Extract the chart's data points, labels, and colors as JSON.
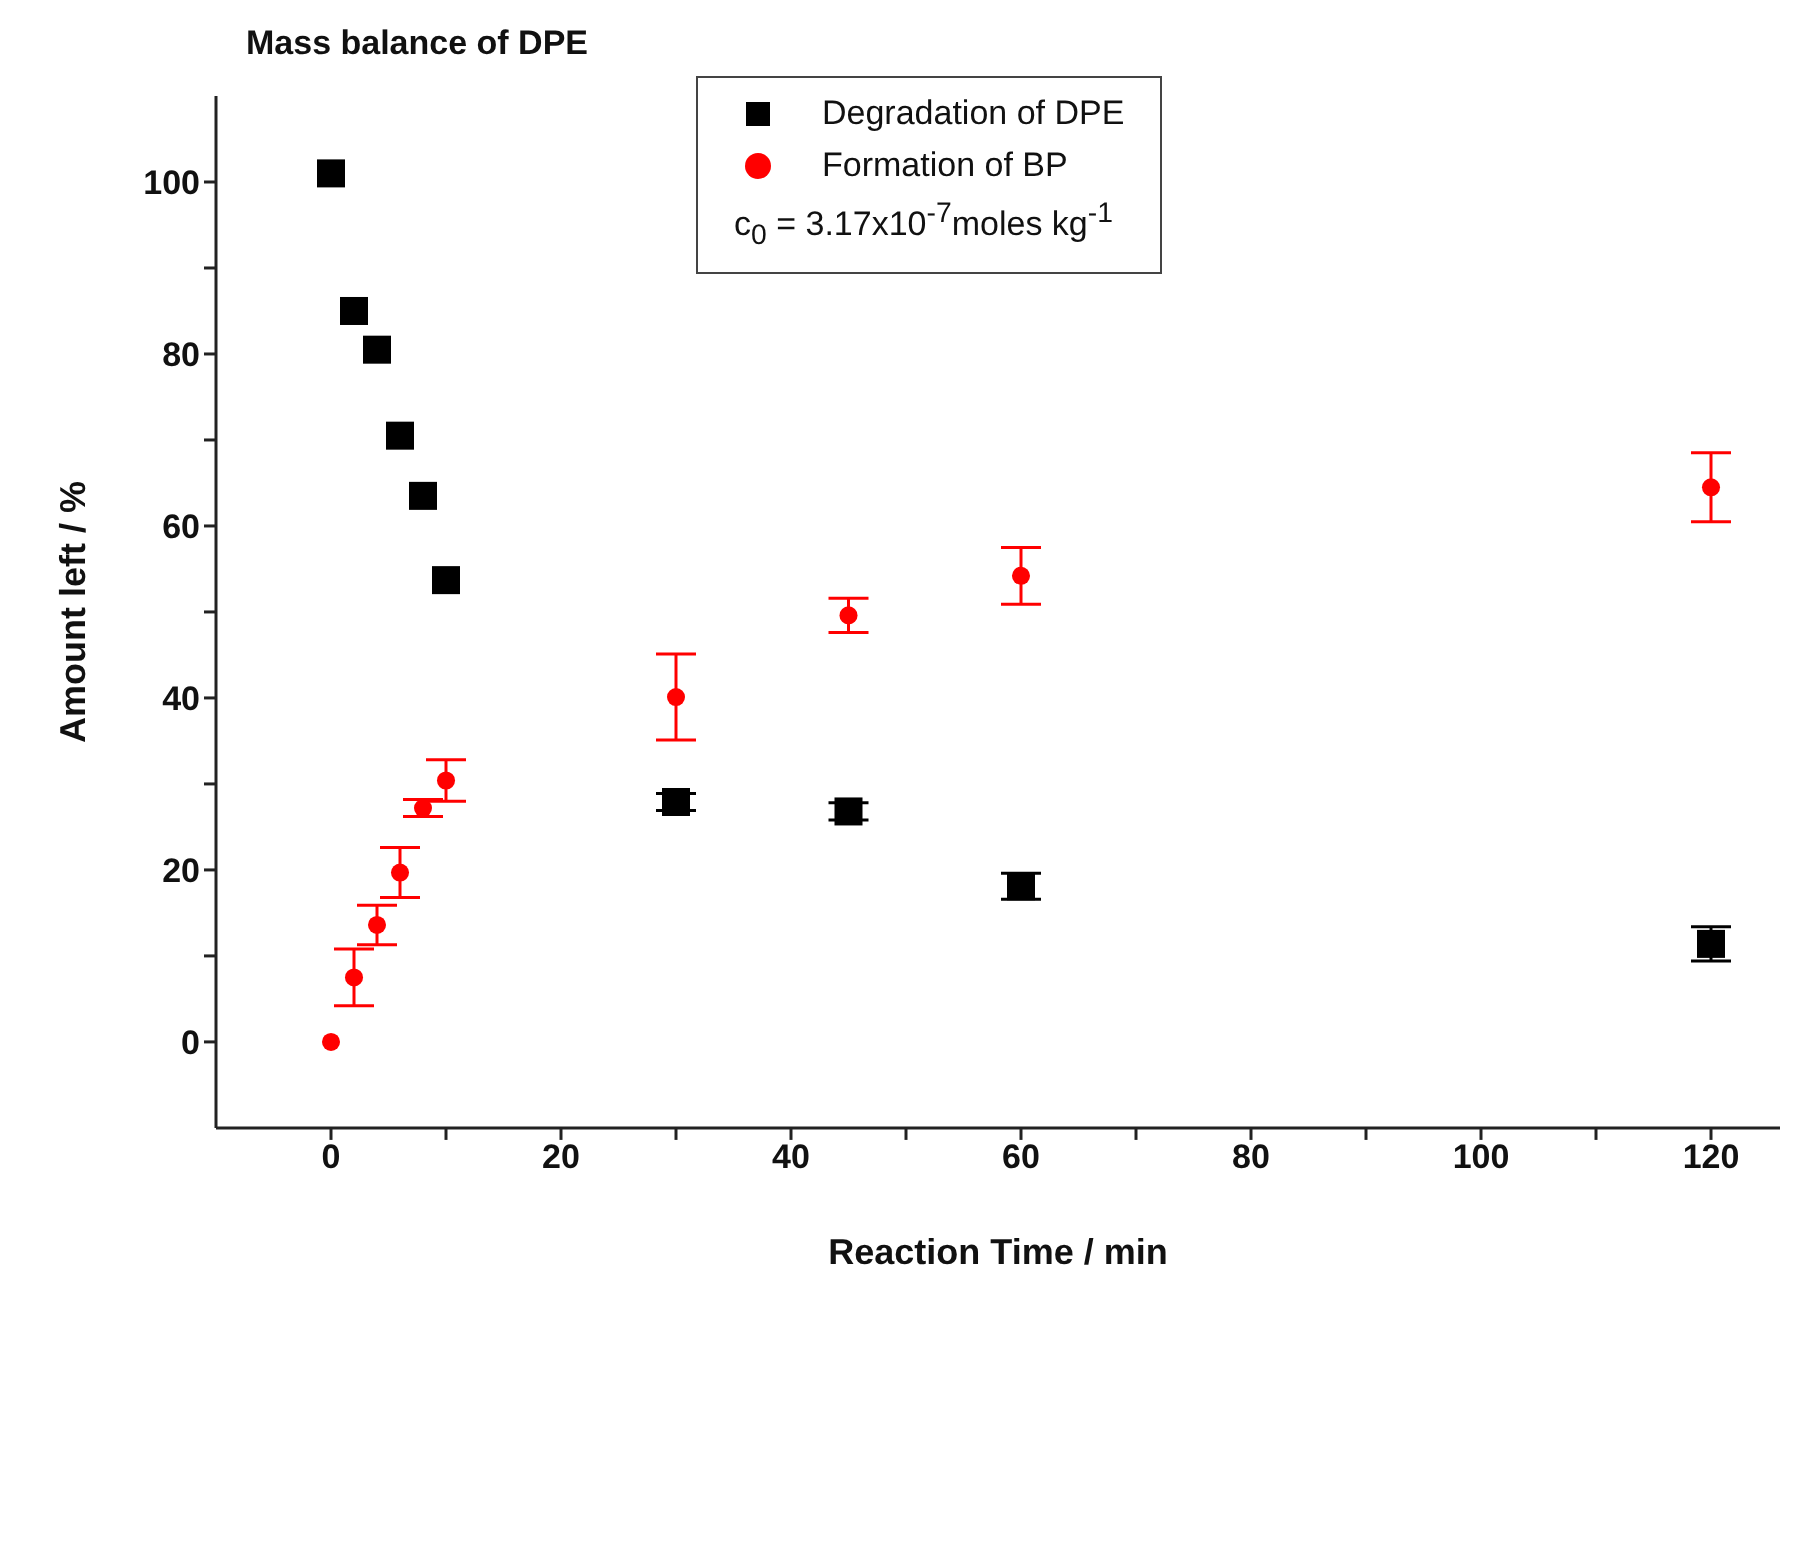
{
  "chart_data": {
    "type": "scatter",
    "title": "Mass balance of DPE",
    "xlabel": "Reaction Time / min",
    "ylabel": "Amount left / %",
    "x": [
      0,
      2,
      4,
      6,
      8,
      10,
      30,
      45,
      60,
      120
    ],
    "series": [
      {
        "name": "Degradation of DPE",
        "color": "#000000",
        "marker": "square",
        "values": [
          101,
          85,
          80.5,
          70.5,
          63.5,
          53.7,
          27.9,
          26.8,
          18.1,
          11.4
        ],
        "errors": [
          null,
          null,
          null,
          null,
          null,
          null,
          1,
          1,
          1.5,
          2
        ]
      },
      {
        "name": "Formation of BP",
        "color": "#ff0000",
        "marker": "circle",
        "values": [
          0,
          7.5,
          13.6,
          19.7,
          27.2,
          30.4,
          40.1,
          49.6,
          54.2,
          64.5
        ],
        "errors": [
          null,
          3.3,
          2.3,
          2.9,
          1,
          2.4,
          5,
          2,
          3.3,
          4
        ]
      }
    ],
    "annotations": [
      "c$_{0}$ = 3.17x10$^{-7}$moles kg$^{-1}$"
    ],
    "xlim": [
      -10,
      126
    ],
    "ylim": [
      -10,
      110
    ],
    "xticks": [
      0,
      {
        "value": 10,
        "label": null
      },
      20,
      {
        "value": 30,
        "label": null
      },
      40,
      {
        "value": 50,
        "label": null
      },
      60,
      {
        "value": 70,
        "label": null
      },
      80,
      {
        "value": 90,
        "label": null
      },
      100,
      {
        "value": 110,
        "label": null
      },
      120
    ],
    "yticks": [
      0,
      {
        "value": 10,
        "label": null
      },
      20,
      {
        "value": 30,
        "label": null
      },
      40,
      {
        "value": 50,
        "label": null
      },
      60,
      {
        "value": 70,
        "label": null
      },
      80,
      {
        "value": 90,
        "label": null
      },
      100
    ],
    "grid": false,
    "legend": "top"
  }
}
